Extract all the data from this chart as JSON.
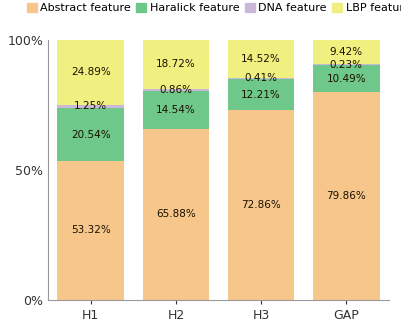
{
  "categories": [
    "H1",
    "H2",
    "H3",
    "GAP"
  ],
  "abstract_feature": [
    53.32,
    65.88,
    72.86,
    79.86
  ],
  "haralick_feature": [
    20.54,
    14.54,
    12.21,
    10.49
  ],
  "dna_feature": [
    1.25,
    0.86,
    0.41,
    0.23
  ],
  "lbp_feature": [
    24.89,
    18.72,
    14.52,
    9.42
  ],
  "colors": {
    "abstract": "#F6C68A",
    "haralick": "#6DC88A",
    "dna": "#C9B8D8",
    "lbp": "#F0F080"
  },
  "legend_labels": [
    "Abstract feature",
    "Haralick feature",
    "DNA feature",
    "LBP feature"
  ],
  "ylabel_ticks": [
    "0%",
    "50%",
    "100%"
  ],
  "yticks": [
    0,
    50,
    100
  ],
  "background_color": "#ffffff",
  "text_color": "#1a1000",
  "bar_width": 0.78,
  "annotation_fontsize": 7.5,
  "legend_fontsize": 8.0,
  "tick_fontsize": 9.0
}
